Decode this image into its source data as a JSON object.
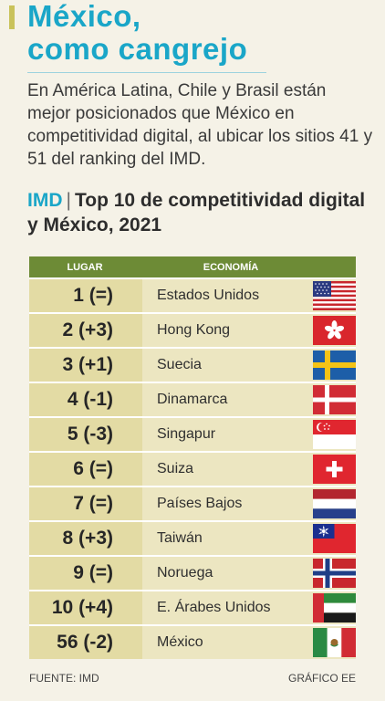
{
  "header": {
    "title_line1": "México,",
    "title_line2": "como cangrejo",
    "lede": "En América Latina, Chile y Brasil están mejor posicionados que México en competitividad digital, al ubicar los sitios 41 y 51 del ranking del IMD."
  },
  "subhead": {
    "source_tag": "IMD",
    "separator": "|",
    "text": "Top 10 de competitividad digital y México, 2021"
  },
  "table": {
    "col_rank": "LUGAR",
    "col_economy": "ECONOMÍA",
    "rows": [
      {
        "rank": "1 (=)",
        "name": "Estados Unidos",
        "flag": "usa-flag-icon"
      },
      {
        "rank": "2 (+3)",
        "name": "Hong Kong",
        "flag": "hong-kong-flag-icon"
      },
      {
        "rank": "3 (+1)",
        "name": "Suecia",
        "flag": "sweden-flag-icon"
      },
      {
        "rank": "4 (-1)",
        "name": "Dinamarca",
        "flag": "denmark-flag-icon"
      },
      {
        "rank": "5 (-3)",
        "name": "Singapur",
        "flag": "singapore-flag-icon"
      },
      {
        "rank": "6 (=)",
        "name": "Suiza",
        "flag": "switzerland-flag-icon"
      },
      {
        "rank": "7 (=)",
        "name": "Países Bajos",
        "flag": "netherlands-flag-icon"
      },
      {
        "rank": "8 (+3)",
        "name": "Taiwán",
        "flag": "taiwan-flag-icon"
      },
      {
        "rank": "9 (=)",
        "name": "Noruega",
        "flag": "norway-flag-icon"
      },
      {
        "rank": "10 (+4)",
        "name": "E. Árabes Unidos",
        "flag": "uae-flag-icon"
      },
      {
        "rank": "56 (-2)",
        "name": "México",
        "flag": "mexico-flag-icon"
      }
    ]
  },
  "footer": {
    "source": "FUENTE: IMD",
    "credit": "GRÁFICO EE"
  },
  "colors": {
    "title": "#1aa6c8",
    "header_bar": "#6d8b36",
    "rank_cell": "#e3dba4",
    "name_cell": "#ece6c1"
  }
}
